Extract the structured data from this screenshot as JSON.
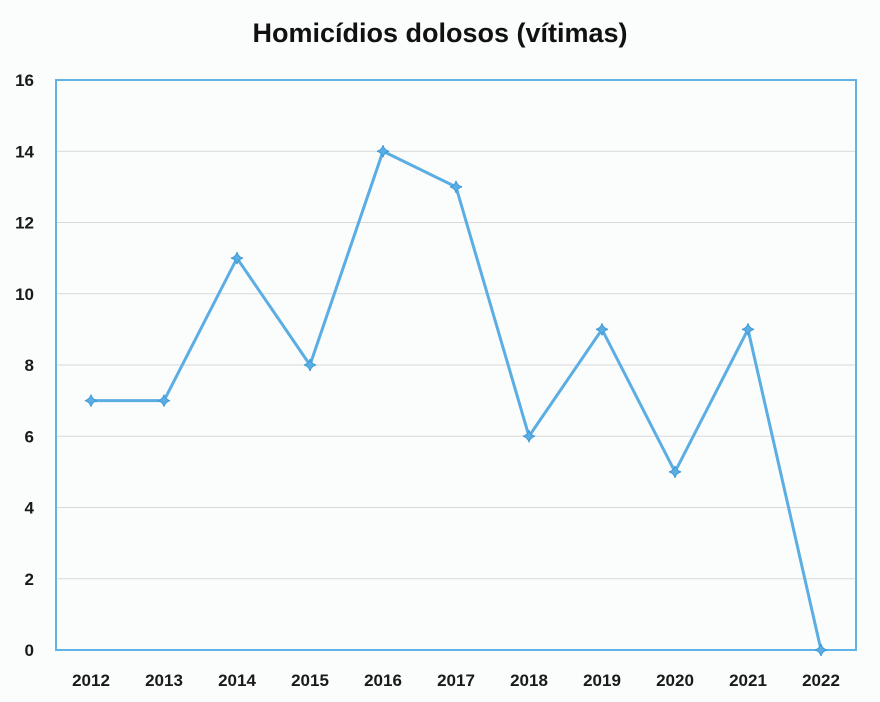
{
  "chart_data": {
    "type": "line",
    "title": "Homicídios  dolosos  (vítimas)",
    "xlabel": "",
    "ylabel": "",
    "categories": [
      "2012",
      "2013",
      "2014",
      "2015",
      "2016",
      "2017",
      "2018",
      "2019",
      "2020",
      "2021",
      "2022"
    ],
    "series": [
      {
        "name": "Homicídios dolosos (vítimas)",
        "values": [
          7,
          7,
          11,
          8,
          14,
          13,
          6,
          9,
          5,
          9,
          0
        ],
        "color": "#5aaee3"
      }
    ],
    "ylim": [
      0,
      16
    ],
    "yticks": [
      "0",
      "2",
      "4",
      "6",
      "8",
      "10",
      "12",
      "14",
      "16"
    ],
    "grid": true,
    "legend": "none"
  }
}
